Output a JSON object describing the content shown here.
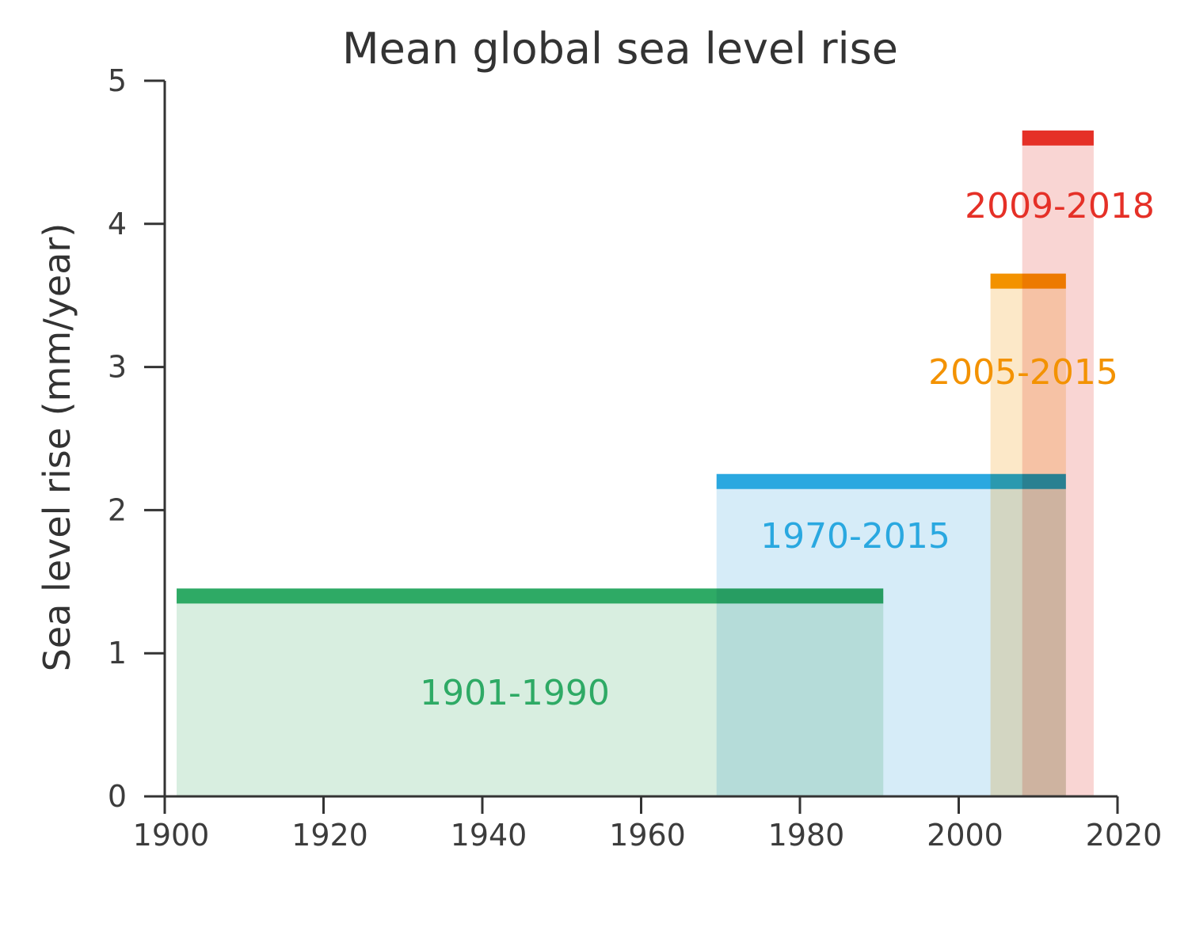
{
  "chart_data": {
    "type": "bar",
    "title": "Mean global sea level rise",
    "xlabel": "",
    "ylabel": "Sea level rise (mm/year)",
    "xlim": [
      1900,
      2020
    ],
    "ylim": [
      0,
      5
    ],
    "xticks": [
      "1900",
      "1920",
      "1940",
      "1960",
      "1980",
      "2000",
      "2020"
    ],
    "yticks": [
      "0",
      "1",
      "2",
      "3",
      "4",
      "5"
    ],
    "grid": false,
    "series": [
      {
        "label": "1901-1990",
        "x_start": 1901.5,
        "x_end": 1990.5,
        "value": 1.4,
        "color": "#2eaa65",
        "fill": "#d8eee0"
      },
      {
        "label": "1970-2015",
        "x_start": 1969.5,
        "x_end": 2013.5,
        "value": 2.2,
        "color": "#2aa8e0",
        "fill": "#d6ecf8"
      },
      {
        "label": "2005-2015",
        "x_start": 2004,
        "x_end": 2013.5,
        "value": 3.6,
        "color": "#f39200",
        "fill": "#fce8c8"
      },
      {
        "label": "2009-2018",
        "x_start": 2008,
        "x_end": 2017,
        "value": 4.6,
        "color": "#e53027",
        "fill": "#f9d5d3"
      }
    ]
  }
}
